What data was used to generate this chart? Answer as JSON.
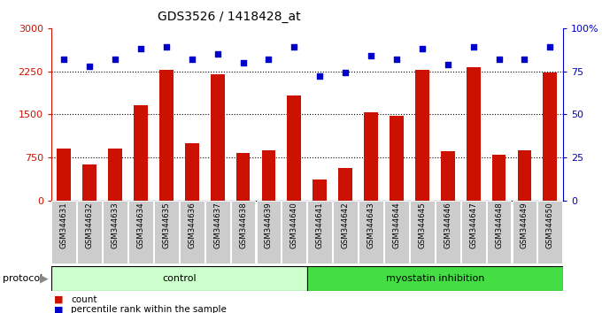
{
  "title": "GDS3526 / 1418428_at",
  "samples": [
    "GSM344631",
    "GSM344632",
    "GSM344633",
    "GSM344634",
    "GSM344635",
    "GSM344636",
    "GSM344637",
    "GSM344638",
    "GSM344639",
    "GSM344640",
    "GSM344641",
    "GSM344642",
    "GSM344643",
    "GSM344644",
    "GSM344645",
    "GSM344646",
    "GSM344647",
    "GSM344648",
    "GSM344649",
    "GSM344650"
  ],
  "counts": [
    900,
    620,
    900,
    1650,
    2270,
    1000,
    2190,
    820,
    870,
    1820,
    370,
    570,
    1530,
    1470,
    2270,
    850,
    2320,
    790,
    870,
    2230
  ],
  "percentiles": [
    82,
    78,
    82,
    88,
    89,
    82,
    85,
    80,
    82,
    89,
    72,
    74,
    84,
    82,
    88,
    79,
    89,
    82,
    82,
    89
  ],
  "control_count": 10,
  "myostatin_count": 10,
  "ylim_left": [
    0,
    3000
  ],
  "ylim_right": [
    0,
    100
  ],
  "yticks_left": [
    0,
    750,
    1500,
    2250,
    3000
  ],
  "yticks_right": [
    0,
    25,
    50,
    75,
    100
  ],
  "bar_color": "#cc1100",
  "dot_color": "#0000cc",
  "grid_lines": [
    750,
    1500,
    2250
  ],
  "control_color": "#ccffcc",
  "myostatin_color": "#44dd44",
  "legend_count_color": "#cc1100",
  "legend_pct_color": "#0000cc",
  "fig_bg": "#e8e8e8"
}
